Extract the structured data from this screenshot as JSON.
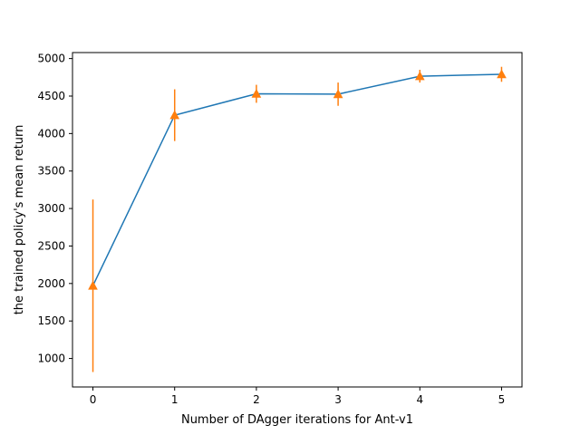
{
  "chart_data": {
    "type": "line",
    "title": "",
    "xlabel": "Number of DAgger iterations for Ant-v1",
    "ylabel": "the trained policy's mean return",
    "xlim": [
      -0.25,
      5.25
    ],
    "ylim": [
      620,
      5080
    ],
    "x_ticks": [
      0,
      1,
      2,
      3,
      4,
      5
    ],
    "y_ticks": [
      1000,
      1500,
      2000,
      2500,
      3000,
      3500,
      4000,
      4500,
      5000
    ],
    "grid": false,
    "legend": "none",
    "series": [
      {
        "x": [
          0,
          1,
          2,
          3,
          4,
          5
        ],
        "y": [
          1970,
          4245,
          4530,
          4525,
          4765,
          4790
        ],
        "color": "#1f77b4",
        "marker": "none"
      },
      {
        "x": [
          0,
          1,
          2,
          3,
          4,
          5
        ],
        "y": [
          1970,
          4245,
          4530,
          4525,
          4765,
          4790
        ],
        "yerr": [
          1150,
          345,
          120,
          155,
          85,
          100
        ],
        "color": "#ff7f0e",
        "marker": "triangle-up",
        "line": "none"
      }
    ]
  }
}
